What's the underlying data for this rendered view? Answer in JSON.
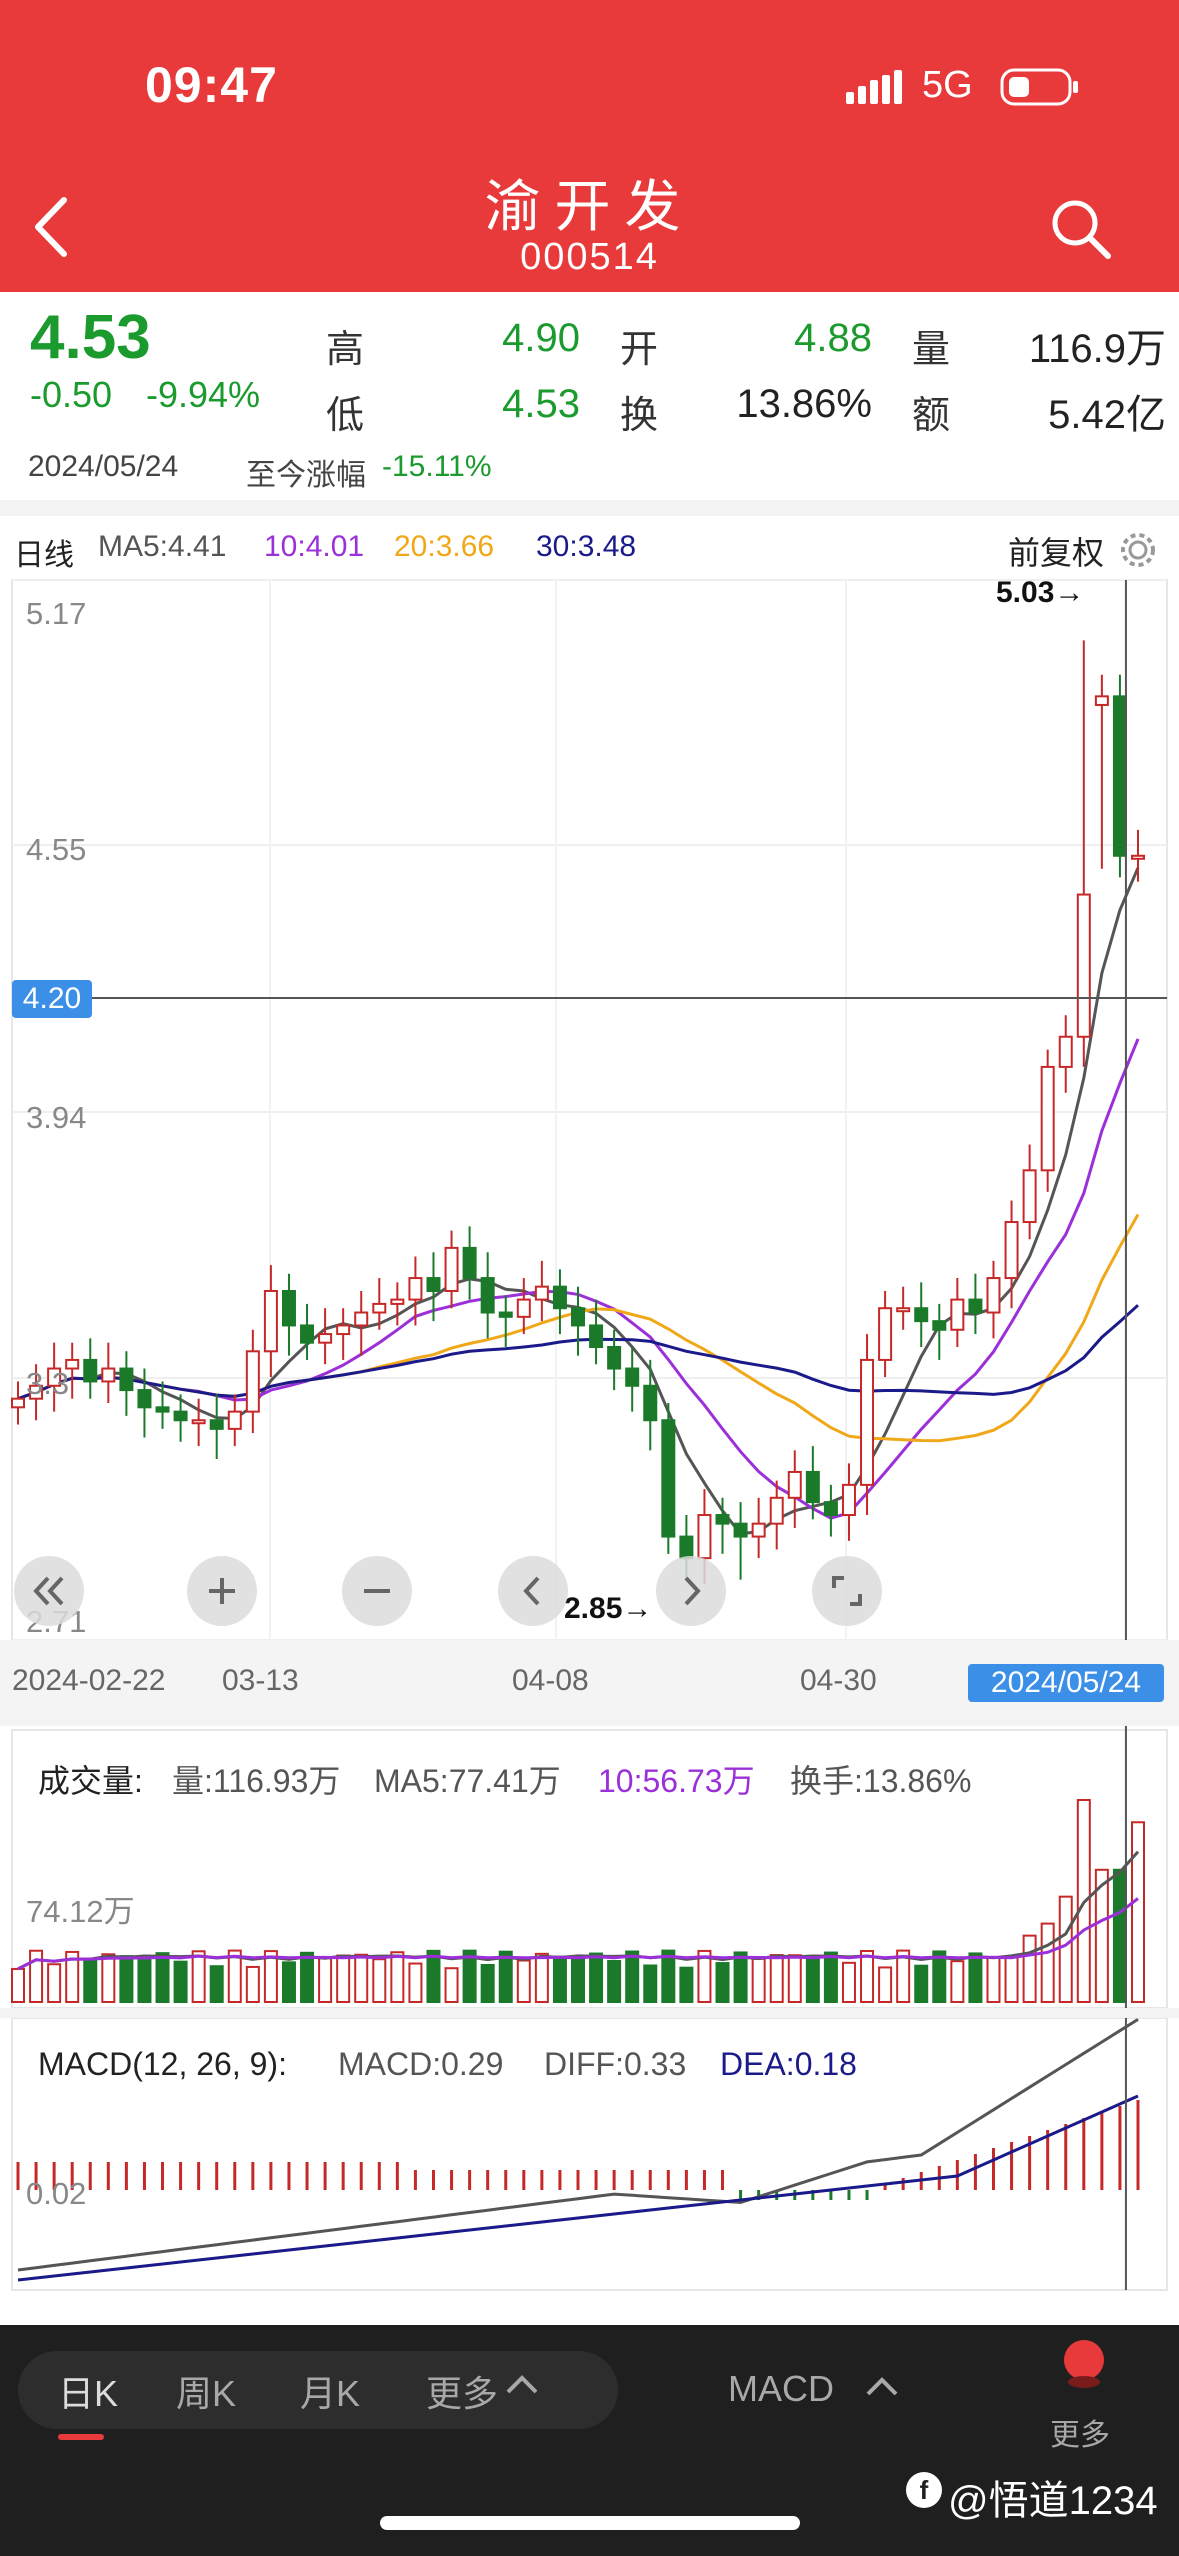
{
  "status_bar": {
    "time": "09:47",
    "network": "5G"
  },
  "header": {
    "title": "渝开发",
    "code": "000514"
  },
  "quote": {
    "price": "4.53",
    "change": "-0.50",
    "change_pct": "-9.94%",
    "date": "2024/05/24",
    "ytd_label": "至今涨幅",
    "ytd_value": "-15.11%",
    "stats": [
      {
        "label": "高",
        "value": "4.90"
      },
      {
        "label": "开",
        "value": "4.88"
      },
      {
        "label": "量",
        "value": "116.9万"
      },
      {
        "label": "低",
        "value": "4.53"
      },
      {
        "label": "换",
        "value": "13.86%"
      },
      {
        "label": "额",
        "value": "5.42亿"
      }
    ]
  },
  "kline": {
    "period_label": "日线",
    "ma5": "MA5:4.41",
    "ma10": "10:4.01",
    "ma20": "20:3.66",
    "ma30": "30:3.48",
    "adjust": "前复权",
    "price_labels": [
      "5.17",
      "4.55",
      "3.94",
      "3.3",
      "2.71"
    ],
    "crosshair_price": "4.20",
    "high_marker": "5.03→",
    "low_marker": "2.85→",
    "dates": [
      "2024-02-22",
      "03-13",
      "04-08",
      "04-30"
    ],
    "selected_date": "2024/05/24"
  },
  "volume": {
    "title": "成交量:",
    "vol": "量:116.93万",
    "ma5": "MA5:77.41万",
    "ma10": "10:56.73万",
    "turnover": "换手:13.86%",
    "axis_label": "74.12万"
  },
  "macd": {
    "title": "MACD(12, 26, 9):",
    "macd": "MACD:0.29",
    "diff": "DIFF:0.33",
    "dea": "DEA:0.18",
    "axis_label": "0.02"
  },
  "bottom_bar": {
    "tabs": [
      "日K",
      "周K",
      "月K",
      "更多"
    ],
    "indicator": "MACD",
    "more": "更多",
    "watermark": "@悟道1234"
  },
  "colors": {
    "header": "#e83a3a",
    "up": "#c62828",
    "down": "#1b7a2a",
    "ma5": "#555555",
    "ma10": "#9b30d9",
    "ma20": "#f0a818",
    "ma30": "#1a1a8a"
  }
}
